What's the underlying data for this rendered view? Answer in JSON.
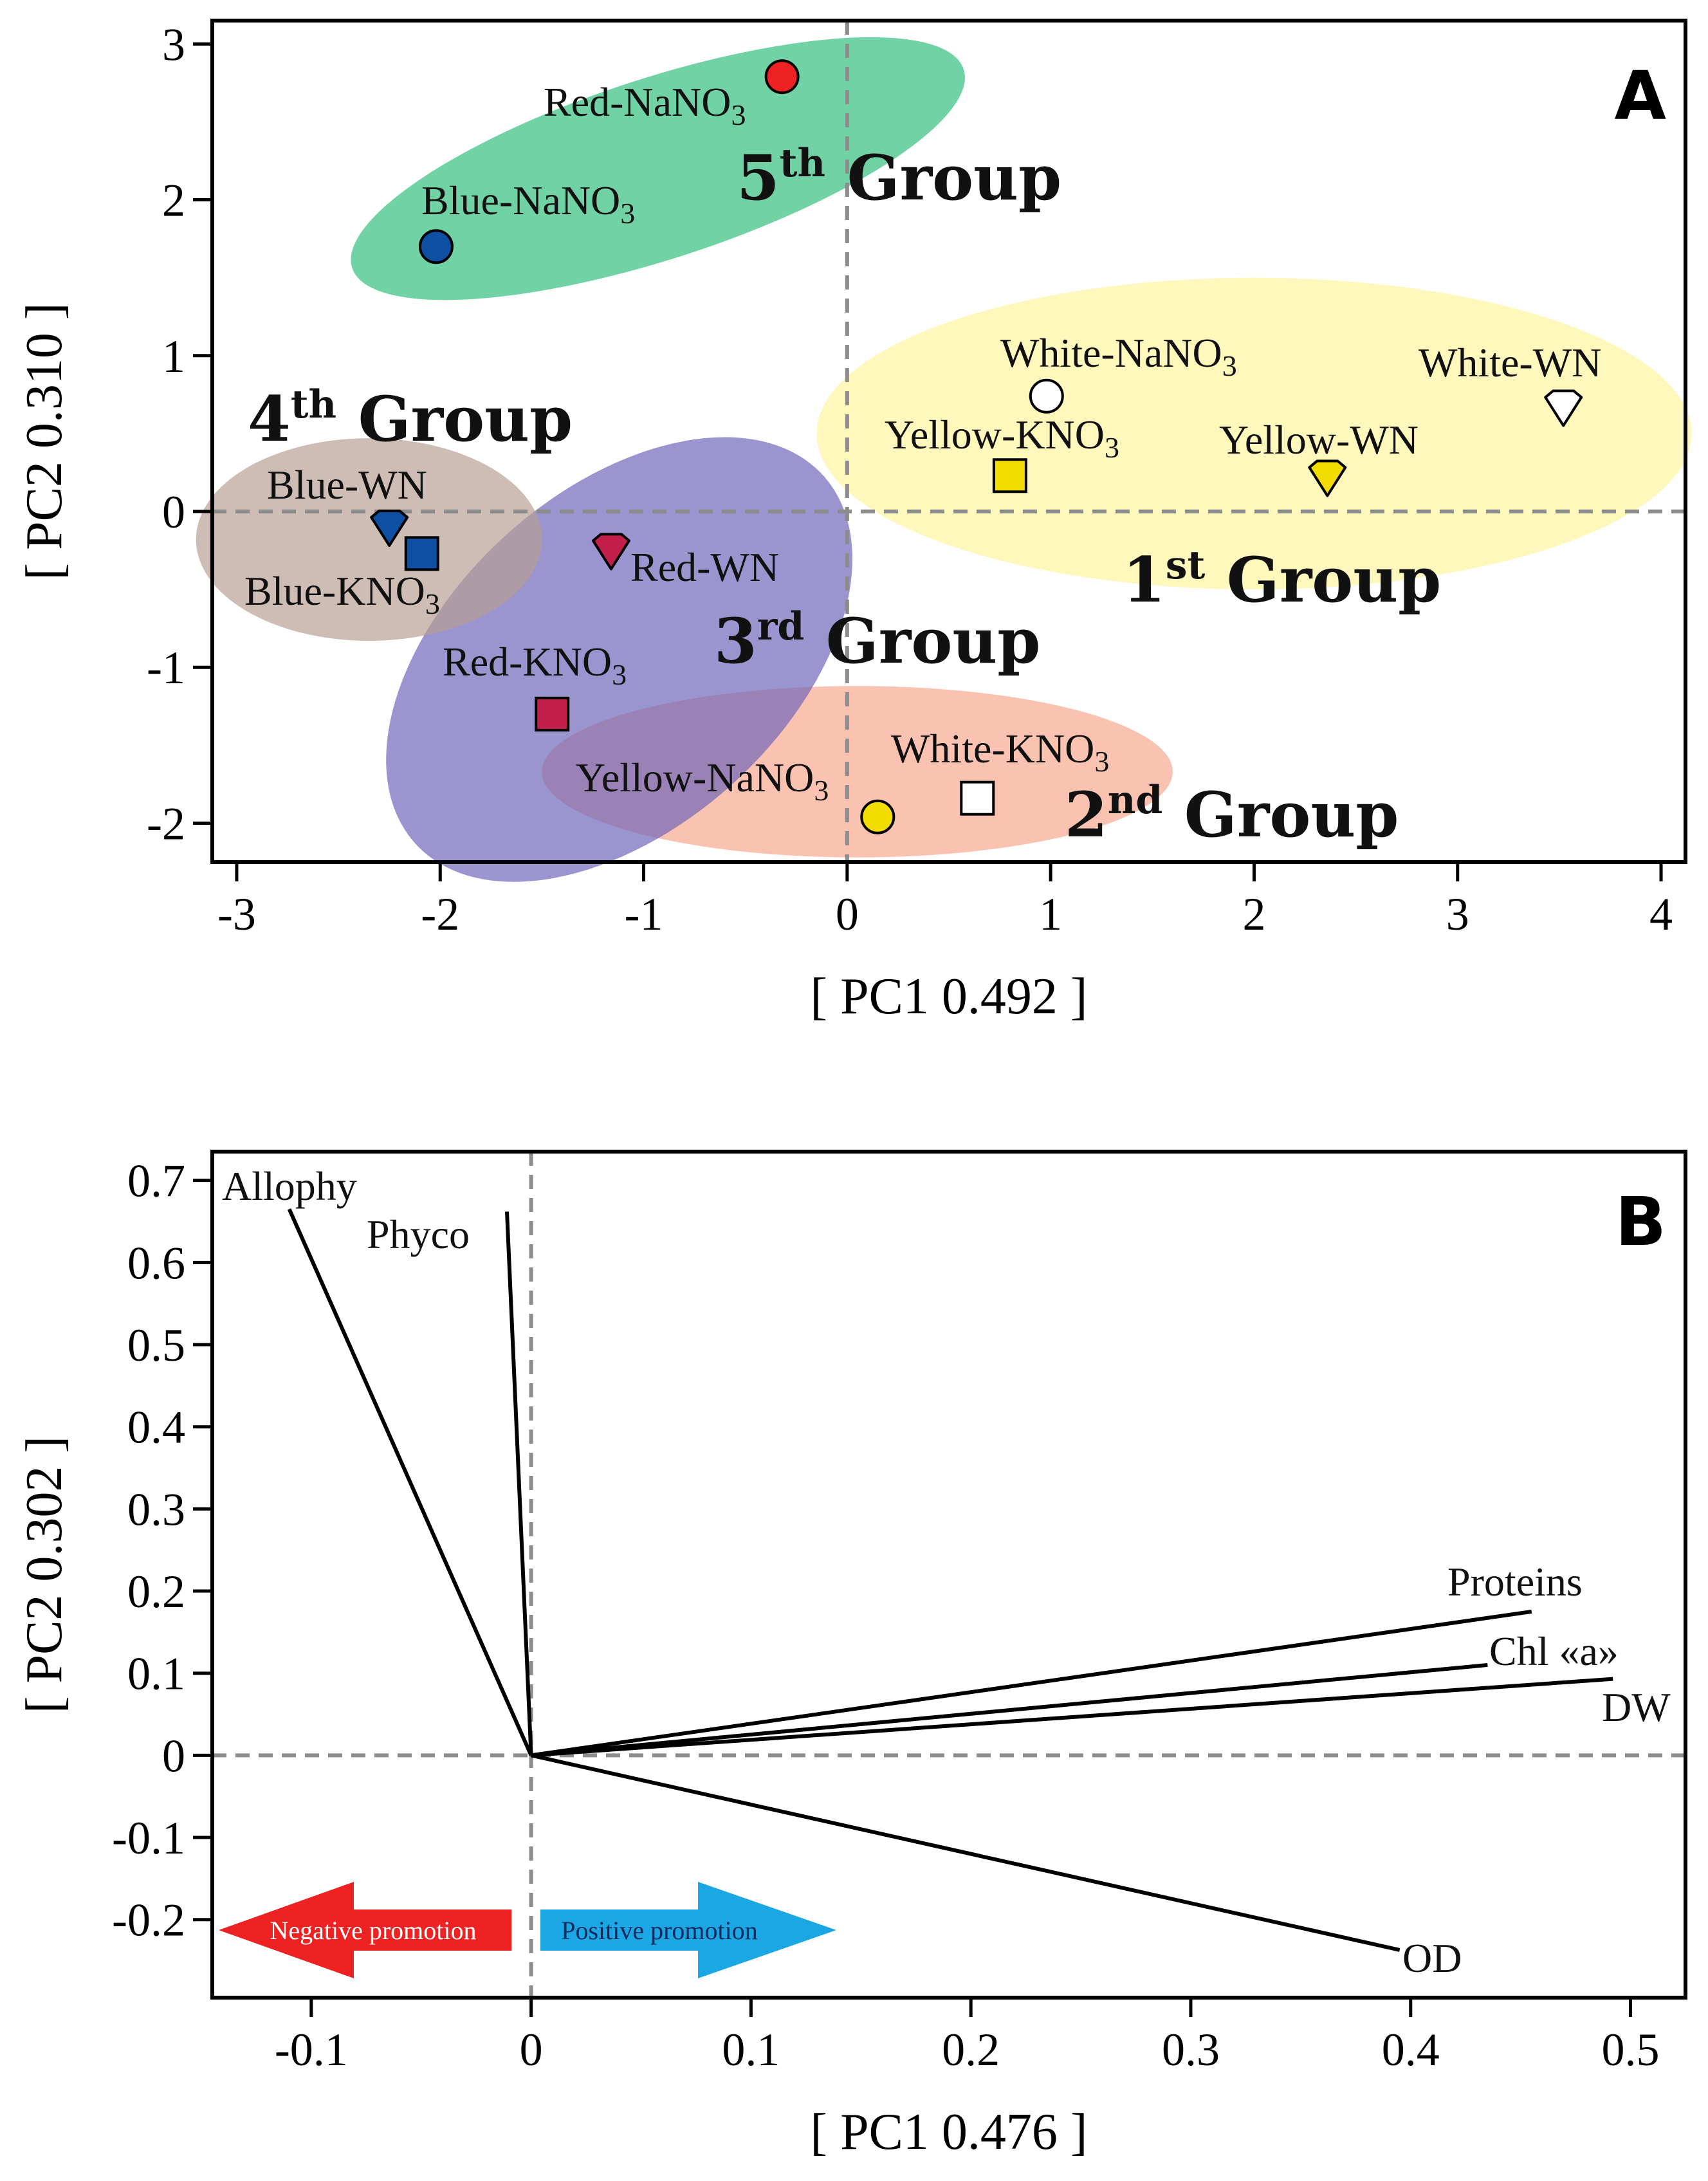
{
  "chart_data": [
    {
      "type": "scatter",
      "panel": "A",
      "xlabel": "[ PC1 0.492 ]",
      "ylabel": "[ PC2 0.310 ]",
      "xlim": [
        -3.12,
        4.12
      ],
      "ylim": [
        -2.25,
        3.15
      ],
      "xticks": [
        -3,
        -2,
        -1,
        0,
        1,
        2,
        3,
        4
      ],
      "yticks": [
        -2,
        -1,
        0,
        1,
        2,
        3
      ],
      "grid": false,
      "zero_lines": "dashed",
      "groups": [
        {
          "name": "1st Group",
          "ord": "1",
          "sup": "st",
          "word": "Group",
          "color": "#fff59d",
          "center": [
            2.0,
            0.5
          ],
          "radii": [
            2.15,
            1.0
          ],
          "angle": 0
        },
        {
          "name": "2nd Group",
          "ord": "2",
          "sup": "nd",
          "word": "Group",
          "color": "#f8a68c",
          "center": [
            0.05,
            -1.67
          ],
          "radii": [
            1.55,
            0.55
          ],
          "angle": 0
        },
        {
          "name": "3rd Group",
          "ord": "3",
          "sup": "rd",
          "word": "Group",
          "color": "#6c63b8",
          "center": [
            -1.12,
            -0.95
          ],
          "radii": [
            1.35,
            1.08
          ],
          "angle": -42
        },
        {
          "name": "4th Group",
          "ord": "4",
          "sup": "th",
          "word": "Group",
          "color": "#b59d91",
          "center": [
            -2.35,
            -0.18
          ],
          "radii": [
            0.85,
            0.65
          ],
          "angle": 0
        },
        {
          "name": "5th Group",
          "ord": "5",
          "sup": "th",
          "word": "Group",
          "color": "#2ebd7a",
          "center": [
            -0.93,
            2.2
          ],
          "radii": [
            1.58,
            0.58
          ],
          "angle": -18
        }
      ],
      "points": [
        {
          "label": "Red-NaNO",
          "sub": "3",
          "x": -0.32,
          "y": 2.79,
          "marker": "circle",
          "color": "#ee2222"
        },
        {
          "label": "Blue-NaNO",
          "sub": "3",
          "x": -2.02,
          "y": 1.7,
          "marker": "circle",
          "color": "#0d4fa3"
        },
        {
          "label": "White-NaNO",
          "sub": "3",
          "x": 0.98,
          "y": 0.74,
          "marker": "circle",
          "color": "#ffffff"
        },
        {
          "label": "White-WN",
          "sub": "",
          "x": 3.52,
          "y": 0.65,
          "marker": "shield",
          "color": "#ffffff"
        },
        {
          "label": "Yellow-KNO",
          "sub": "3",
          "x": 0.8,
          "y": 0.23,
          "marker": "square",
          "color": "#f3dc00"
        },
        {
          "label": "Yellow-WN",
          "sub": "",
          "x": 2.36,
          "y": 0.2,
          "marker": "shield",
          "color": "#f3dc00"
        },
        {
          "label": "Blue-WN",
          "sub": "",
          "x": -2.25,
          "y": -0.12,
          "marker": "shield",
          "color": "#0d4fa3"
        },
        {
          "label": "Blue-KNO",
          "sub": "3",
          "x": -2.09,
          "y": -0.27,
          "marker": "square",
          "color": "#0d4fa3"
        },
        {
          "label": "Red-WN",
          "sub": "",
          "x": -1.16,
          "y": -0.27,
          "marker": "shield",
          "color": "#c21f4d"
        },
        {
          "label": "Red-KNO",
          "sub": "3",
          "x": -1.45,
          "y": -1.3,
          "marker": "square",
          "color": "#c21f4d"
        },
        {
          "label": "Yellow-NaNO",
          "sub": "3",
          "x": 0.15,
          "y": -1.96,
          "marker": "circle",
          "color": "#f3dc00"
        },
        {
          "label": "White-KNO",
          "sub": "3",
          "x": 0.64,
          "y": -1.84,
          "marker": "square",
          "color": "#ffffff"
        }
      ]
    },
    {
      "type": "line",
      "panel": "B",
      "xlabel": "[ PC1 0.476 ]",
      "ylabel": "[ PC2 0.302 ]",
      "xlim": [
        -0.145,
        0.525
      ],
      "ylim": [
        -0.295,
        0.735
      ],
      "xticks": [
        -0.1,
        0,
        0.1,
        0.2,
        0.3,
        0.4,
        0.5
      ],
      "xtick_labels": [
        "-0.1",
        "0",
        "0.1",
        "0.2",
        "0.3",
        "0.4",
        "0.5"
      ],
      "yticks": [
        -0.2,
        -0.1,
        0,
        0.1,
        0.2,
        0.3,
        0.4,
        0.5,
        0.6,
        0.7
      ],
      "ytick_labels": [
        "-0.2",
        "-0.1",
        "0",
        "0.1",
        "0.2",
        "0.3",
        "0.4",
        "0.5",
        "0.6",
        "0.7"
      ],
      "grid": false,
      "zero_lines": "dashed",
      "loadings": [
        {
          "label": "Allophy",
          "x": -0.11,
          "y": 0.665
        },
        {
          "label": "Phyco",
          "x": -0.011,
          "y": 0.662
        },
        {
          "label": "Proteins",
          "x": 0.455,
          "y": 0.175
        },
        {
          "label": "Chl «a»",
          "x": 0.435,
          "y": 0.11
        },
        {
          "label": "DW",
          "x": 0.492,
          "y": 0.093
        },
        {
          "label": "OD",
          "x": 0.395,
          "y": -0.237
        }
      ],
      "annotations": [
        {
          "text": "Negative promotion",
          "color": "#ee2222",
          "text_color": "#ffffff",
          "direction": "left"
        },
        {
          "text": "Positive promotion",
          "color": "#1aa7e4",
          "text_color": "#0d2a5c",
          "direction": "right"
        }
      ]
    }
  ]
}
